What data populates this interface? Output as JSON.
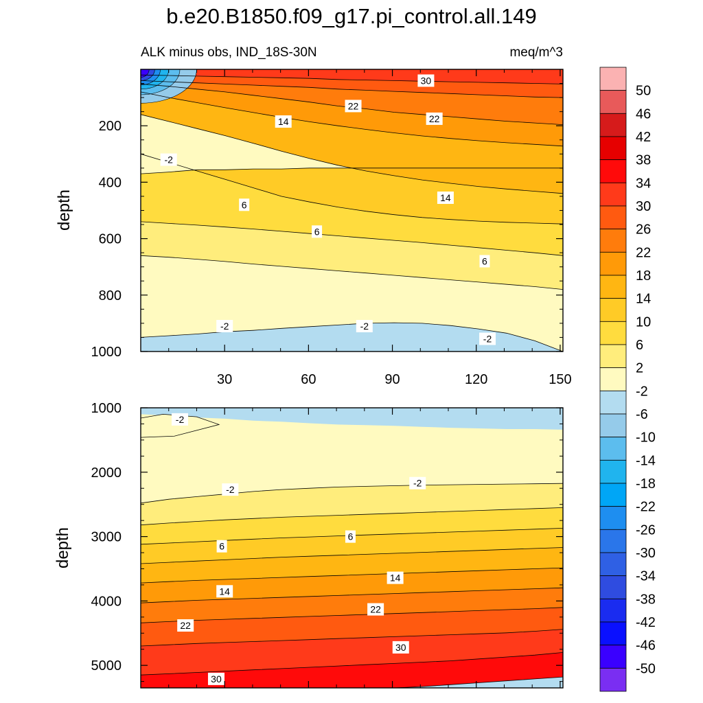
{
  "title": "b.e20.B1850.f09_g17.pi_control.all.149",
  "subtitle_left": "ALK minus obs, IND_18S-30N",
  "subtitle_right": "meq/m^3",
  "colorbar_labels": [
    "50",
    "46",
    "42",
    "38",
    "34",
    "30",
    "26",
    "22",
    "18",
    "14",
    "10",
    "6",
    "2",
    "-2",
    "-6",
    "-10",
    "-14",
    "-18",
    "-22",
    "-26",
    "-30",
    "-34",
    "-38",
    "-42",
    "-46",
    "-50"
  ],
  "colorbar_colors": [
    "#fbb2b2",
    "#e85a5a",
    "#d61b1b",
    "#e60000",
    "#ff0a0a",
    "#ff3a1a",
    "#ff5a10",
    "#ff7c0c",
    "#ff9a08",
    "#ffb612",
    "#ffcb26",
    "#ffdc3e",
    "#ffed7c",
    "#fffac0",
    "#b3dcf0",
    "#95cbea",
    "#5cbdee",
    "#20b4ee",
    "#00a6f6",
    "#1e8ef0",
    "#2a76ea",
    "#2f60e4",
    "#2f4ce0",
    "#1a2cf0",
    "#0a10ff",
    "#3a00ff",
    "#7a2ef2"
  ],
  "chart_data": [
    {
      "type": "contour",
      "panel": "top",
      "xlabel": "",
      "ylabel": "depth",
      "xlim": [
        0,
        151
      ],
      "ylim": [
        1000,
        0
      ],
      "xticks": [
        30,
        60,
        90,
        120,
        150
      ],
      "xtick_labels": [
        "30",
        "60",
        "90",
        "120",
        "150"
      ],
      "yticks": [
        200,
        400,
        600,
        800,
        1000
      ],
      "ytick_labels": [
        "200",
        "400",
        "600",
        "800",
        "1000"
      ],
      "boundaries": [
        {
          "level": -2,
          "depth": [
            370,
            364,
            356,
            356,
            353,
            353,
            350,
            350,
            350,
            350,
            350,
            350,
            350,
            350,
            350,
            350
          ]
        },
        {
          "level": 2,
          "depth": [
            660,
            666,
            673,
            681,
            690,
            698,
            706,
            714,
            722,
            730,
            738,
            746,
            754,
            762,
            770,
            780
          ]
        },
        {
          "level": 6,
          "depth": [
            540,
            546,
            552,
            559,
            566,
            574,
            582,
            590,
            598,
            606,
            614,
            623,
            632,
            641,
            650,
            660
          ]
        },
        {
          "level": 10,
          "depth": [
            300,
            330,
            360,
            390,
            420,
            450,
            470,
            488,
            503,
            515,
            525,
            532,
            538,
            542,
            545,
            548
          ]
        },
        {
          "level": 14,
          "depth": [
            160,
            185,
            210,
            235,
            262,
            290,
            316,
            340,
            360,
            377,
            392,
            404,
            415,
            424,
            432,
            440
          ]
        },
        {
          "level": 18,
          "depth": [
            80,
            100,
            118,
            136,
            153,
            170,
            186,
            200,
            213,
            225,
            236,
            245,
            253,
            260,
            266,
            272
          ]
        },
        {
          "level": 22,
          "depth": [
            52,
            60,
            70,
            80,
            92,
            104,
            116,
            130,
            140,
            152,
            160,
            168,
            176,
            184,
            190,
            196
          ]
        },
        {
          "level": 26,
          "depth": [
            40,
            44,
            48,
            52,
            56,
            60,
            64,
            70,
            74,
            78,
            82,
            86,
            90,
            94,
            98,
            100
          ]
        },
        {
          "level": 30,
          "depth": [
            20,
            22,
            24,
            26,
            28,
            30,
            32,
            36,
            38,
            40,
            42,
            44,
            46,
            48,
            50,
            52
          ]
        }
      ],
      "lower_band": {
        "level": -2,
        "depth": [
          950,
          944,
          938,
          930,
          925,
          918,
          912,
          906,
          900,
          898,
          900,
          908,
          920,
          935,
          962,
          1000
        ]
      },
      "contour_labels": [
        {
          "text": "30",
          "x": 102,
          "depth": 40
        },
        {
          "text": "22",
          "x": 76,
          "depth": 130
        },
        {
          "text": "22",
          "x": 105,
          "depth": 175
        },
        {
          "text": "14",
          "x": 51,
          "depth": 185
        },
        {
          "text": "-2",
          "x": 10,
          "depth": 320
        },
        {
          "text": "14",
          "x": 109,
          "depth": 455
        },
        {
          "text": "6",
          "x": 37,
          "depth": 480
        },
        {
          "text": "6",
          "x": 63,
          "depth": 575
        },
        {
          "text": "6",
          "x": 123,
          "depth": 680
        },
        {
          "text": "-2",
          "x": 30,
          "depth": 910
        },
        {
          "text": "-2",
          "x": 80,
          "depth": 910
        },
        {
          "text": "-2",
          "x": 124,
          "depth": 955
        }
      ]
    },
    {
      "type": "contour",
      "panel": "bottom",
      "xlabel": "",
      "ylabel": "depth",
      "xlim": [
        0,
        151
      ],
      "ylim": [
        5350,
        1000
      ],
      "xticks": [
        30,
        60,
        90,
        120,
        150
      ],
      "yticks": [
        1000,
        2000,
        3000,
        4000,
        5000
      ],
      "ytick_labels": [
        "1000",
        "2000",
        "3000",
        "4000",
        "5000"
      ],
      "boundaries": [
        {
          "level": -2,
          "depth": [
            2480,
            2420,
            2380,
            2340,
            2300,
            2270,
            2250,
            2230,
            2220,
            2210,
            2200,
            2195,
            2190,
            2185,
            2180,
            2175
          ]
        },
        {
          "level": 2,
          "depth": [
            2820,
            2790,
            2765,
            2740,
            2720,
            2700,
            2685,
            2670,
            2655,
            2640,
            2625,
            2610,
            2595,
            2580,
            2565,
            2550
          ]
        },
        {
          "level": 6,
          "depth": [
            3120,
            3100,
            3080,
            3060,
            3040,
            3020,
            3005,
            2990,
            2975,
            2960,
            2945,
            2930,
            2915,
            2900,
            2885,
            2870
          ]
        },
        {
          "level": 10,
          "depth": [
            3420,
            3400,
            3380,
            3360,
            3340,
            3320,
            3305,
            3290,
            3275,
            3260,
            3245,
            3230,
            3215,
            3200,
            3185,
            3170
          ]
        },
        {
          "level": 14,
          "depth": [
            3720,
            3700,
            3680,
            3665,
            3650,
            3635,
            3620,
            3605,
            3590,
            3575,
            3560,
            3545,
            3530,
            3515,
            3500,
            3485
          ]
        },
        {
          "level": 18,
          "depth": [
            4030,
            4010,
            3990,
            3975,
            3960,
            3945,
            3930,
            3915,
            3900,
            3885,
            3870,
            3855,
            3840,
            3825,
            3810,
            3795
          ]
        },
        {
          "level": 22,
          "depth": [
            4340,
            4320,
            4300,
            4285,
            4270,
            4255,
            4240,
            4225,
            4210,
            4195,
            4180,
            4165,
            4150,
            4135,
            4120,
            4100
          ]
        },
        {
          "level": 26,
          "depth": [
            4700,
            4680,
            4660,
            4645,
            4630,
            4615,
            4600,
            4585,
            4570,
            4555,
            4540,
            4525,
            4510,
            4495,
            4470,
            4440
          ]
        },
        {
          "level": 30,
          "depth": [
            5150,
            5130,
            5110,
            5090,
            5070,
            5050,
            5030,
            5010,
            4990,
            4970,
            4950,
            4930,
            4900,
            4870,
            4840,
            4800
          ]
        },
        {
          "level": 34,
          "depth": [
            5350,
            5350,
            5350,
            5350,
            5350,
            5350,
            5350,
            5350,
            5350,
            5350,
            5330,
            5300,
            5270,
            5240,
            5210,
            5180
          ]
        }
      ],
      "upper_band": {
        "level": -2,
        "depth": [
          1100,
          1120,
          1150,
          1170,
          1200,
          1215,
          1240,
          1260,
          1270,
          1280,
          1295,
          1310,
          1320,
          1330,
          1330,
          1340
        ]
      },
      "contour_labels": [
        {
          "text": "-2",
          "x": 14,
          "depth": 1180
        },
        {
          "text": "-2",
          "x": 32,
          "depth": 2270
        },
        {
          "text": "-2",
          "x": 99,
          "depth": 2170
        },
        {
          "text": "6",
          "x": 29,
          "depth": 3150
        },
        {
          "text": "6",
          "x": 75,
          "depth": 3000
        },
        {
          "text": "14",
          "x": 30,
          "depth": 3850
        },
        {
          "text": "14",
          "x": 91,
          "depth": 3640
        },
        {
          "text": "22",
          "x": 16,
          "depth": 4380
        },
        {
          "text": "22",
          "x": 84,
          "depth": 4130
        },
        {
          "text": "30",
          "x": 93,
          "depth": 4720
        },
        {
          "text": "30",
          "x": 27,
          "depth": 5210
        }
      ]
    }
  ]
}
